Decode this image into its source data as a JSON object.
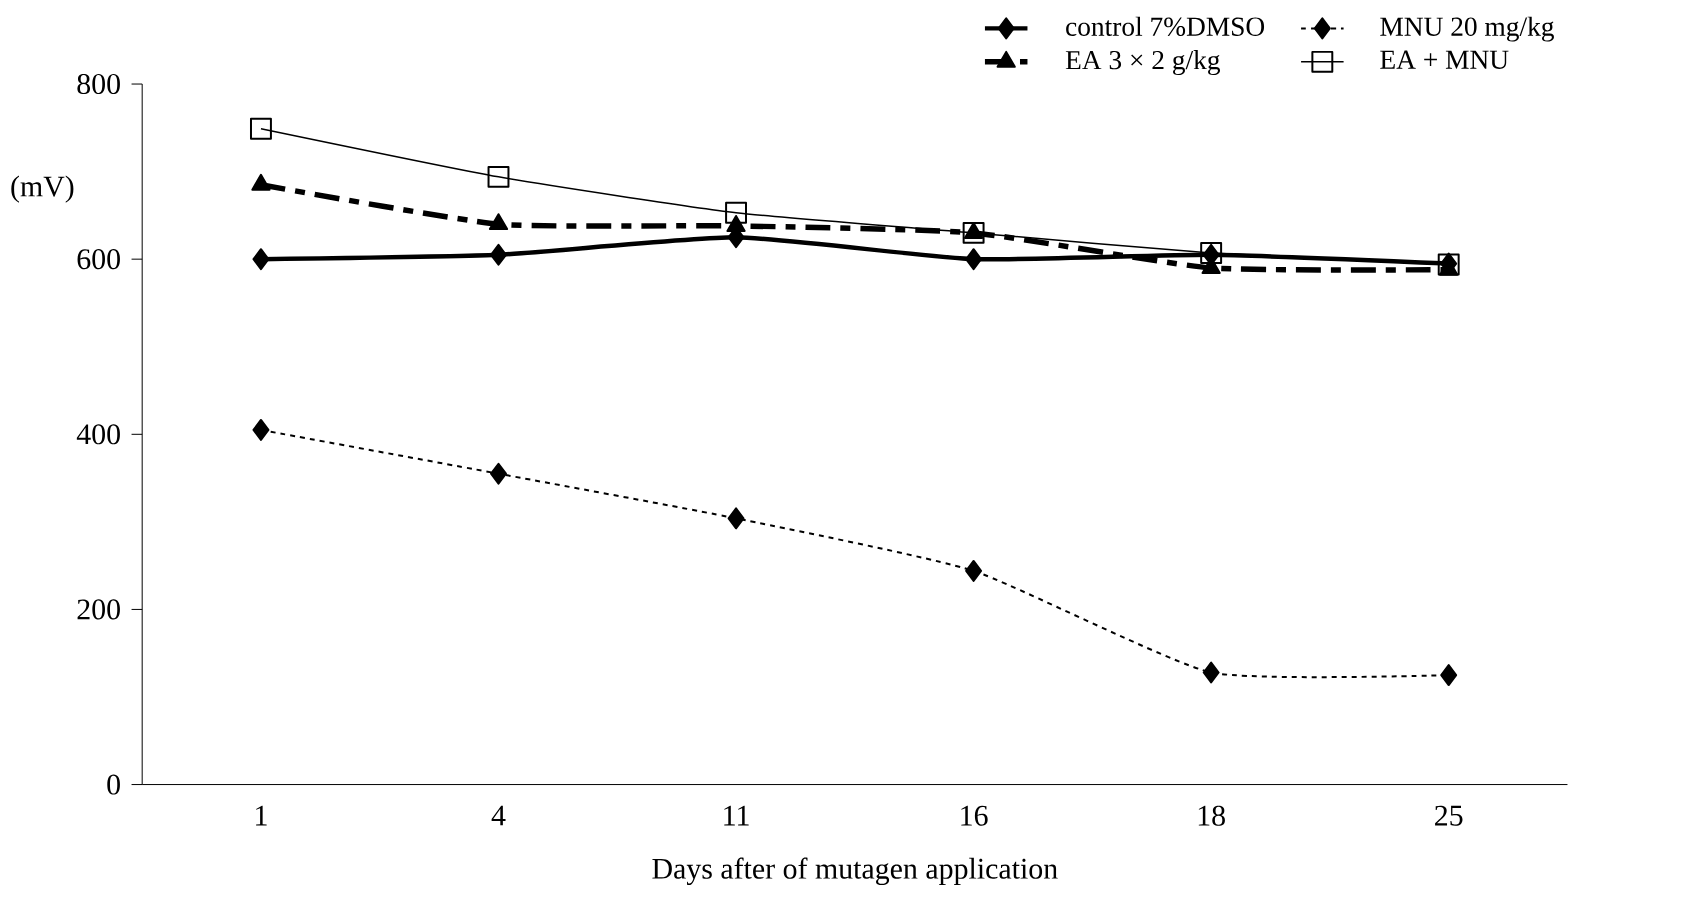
{
  "chart_data": {
    "type": "line",
    "xlabel": "Days after of mutagen application",
    "ylabel": "(mV)",
    "categories": [
      "1",
      "4",
      "11",
      "16",
      "18",
      "25"
    ],
    "series": [
      {
        "name": "control 7%DMSO",
        "color": "#000000",
        "values": [
          600,
          605,
          625,
          600,
          605,
          595
        ],
        "marker": "diamond",
        "line_style": "solid"
      },
      {
        "name": "MNU 20 mg/kg",
        "color": "#000000",
        "values": [
          405,
          355,
          304,
          244,
          128,
          125
        ],
        "marker": "diamond",
        "line_style": "dotted"
      },
      {
        "name": "EA 3 × 2 g/kg",
        "color": "#000000",
        "values": [
          685,
          640,
          638,
          630,
          590,
          588
        ],
        "marker": "triangle",
        "line_style": "dashed"
      },
      {
        "name": "EA + MNU",
        "color": "#000000",
        "values": [
          749,
          694,
          653,
          630,
          607,
          594
        ],
        "marker": "square",
        "line_style": "solid"
      }
    ],
    "ylim": [
      0,
      800
    ],
    "yticks": [
      0,
      200,
      400,
      600,
      800
    ],
    "grid": false,
    "legend": "top right"
  }
}
